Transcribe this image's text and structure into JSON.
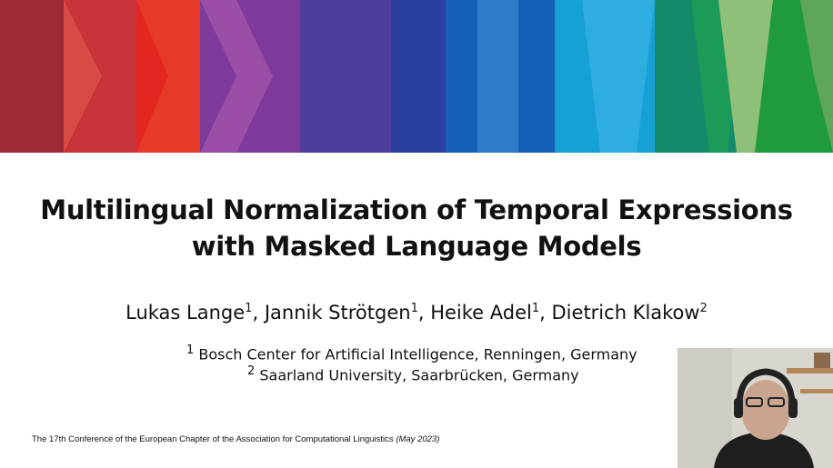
{
  "title": {
    "lines": [
      "Multilingual Normalization of Temporal Expressions",
      "with Masked Language Models"
    ]
  },
  "authors": [
    {
      "name": "Lukas Lange",
      "affiliation": "1",
      "separator": ","
    },
    {
      "name": "Jannik Strötgen",
      "affiliation": "1",
      "separator": ","
    },
    {
      "name": "Heike Adel",
      "affiliation": "1",
      "separator": ","
    },
    {
      "name": "Dietrich Klakow",
      "affiliation": "2"
    }
  ],
  "affiliations": [
    {
      "marker": "1",
      "text": "Bosch Center for Artificial Intelligence, Renningen, Germany"
    },
    {
      "marker": "2",
      "text": "Saarland University, Saarbrücken, Germany"
    }
  ],
  "footer": {
    "text": "The 17th Conference of the European Chapter of the Association for Computational Linguistics",
    "date": "(May 2023)"
  }
}
